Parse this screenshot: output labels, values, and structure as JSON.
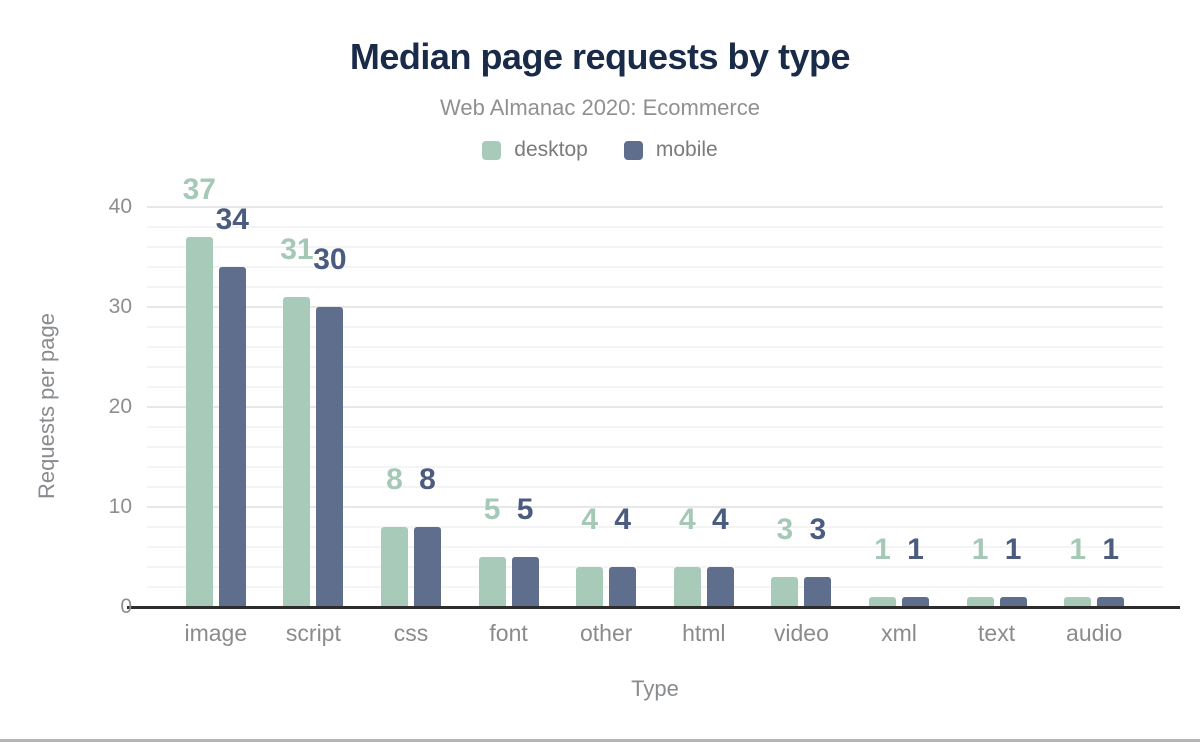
{
  "chart_data": {
    "type": "bar",
    "title": "Median page requests by type",
    "subtitle": "Web Almanac 2020: Ecommerce",
    "xlabel": "Type",
    "ylabel": "Requests per page",
    "categories": [
      "image",
      "script",
      "css",
      "font",
      "other",
      "html",
      "video",
      "xml",
      "text",
      "audio"
    ],
    "series": [
      {
        "name": "desktop",
        "color": "#a8cbb9",
        "label_color": "#a5c9b6",
        "values": [
          37,
          31,
          8,
          5,
          4,
          4,
          3,
          1,
          1,
          1
        ]
      },
      {
        "name": "mobile",
        "color": "#5f6e8c",
        "label_color": "#4b5c7f",
        "values": [
          34,
          30,
          8,
          5,
          4,
          4,
          3,
          1,
          1,
          1
        ]
      }
    ],
    "ylim": [
      0,
      40
    ],
    "yticks": [
      0,
      10,
      20,
      30,
      40
    ],
    "minor_grid_step": 2,
    "grid": "on",
    "legend_position": "top",
    "title_color": "#1a2b49"
  }
}
